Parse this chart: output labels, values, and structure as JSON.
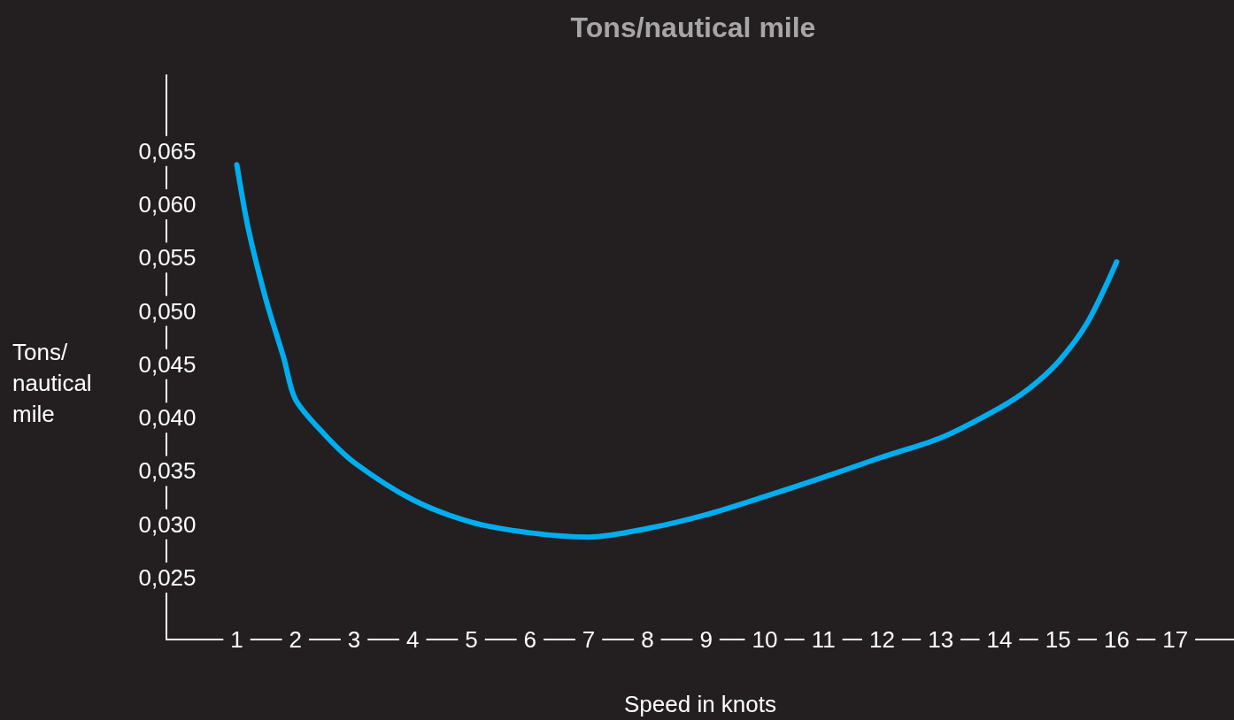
{
  "chart_data": {
    "type": "line",
    "title": "Tons/nautical mile",
    "xlabel": "Speed in knots",
    "ylabel": "Tons/\nnautical\nmile",
    "x": [
      1,
      1.2,
      1.5,
      1.8,
      2,
      2.5,
      3,
      4,
      5,
      6,
      7,
      8,
      9,
      10,
      11,
      12,
      13,
      14,
      14.5,
      15,
      15.5,
      16
    ],
    "series": [
      {
        "color": "#00aeef",
        "values": [
          0.0637,
          0.0576,
          0.051,
          0.0456,
          0.0417,
          0.0384,
          0.0358,
          0.0323,
          0.0302,
          0.0292,
          0.0288,
          0.0296,
          0.0309,
          0.0326,
          0.0344,
          0.0363,
          0.0381,
          0.0409,
          0.0427,
          0.0452,
          0.0489,
          0.0546
        ]
      }
    ],
    "xlim": [
      -0.2,
      18
    ],
    "xticks": [
      1,
      2,
      3,
      4,
      5,
      6,
      7,
      8,
      9,
      10,
      11,
      12,
      13,
      14,
      15,
      16,
      17
    ],
    "ylim": [
      0.0192,
      0.0721
    ],
    "yticks": [
      {
        "value": 0.025,
        "label": "0,025"
      },
      {
        "value": 0.03,
        "label": "0,030"
      },
      {
        "value": 0.035,
        "label": "0,035"
      },
      {
        "value": 0.04,
        "label": "0,040"
      },
      {
        "value": 0.045,
        "label": "0,045"
      },
      {
        "value": 0.05,
        "label": "0,050"
      },
      {
        "value": 0.055,
        "label": "0,055"
      },
      {
        "value": 0.06,
        "label": "0,060"
      },
      {
        "value": 0.065,
        "label": "0,065"
      }
    ],
    "grid": false,
    "marker": "none",
    "line_style": "solid"
  }
}
